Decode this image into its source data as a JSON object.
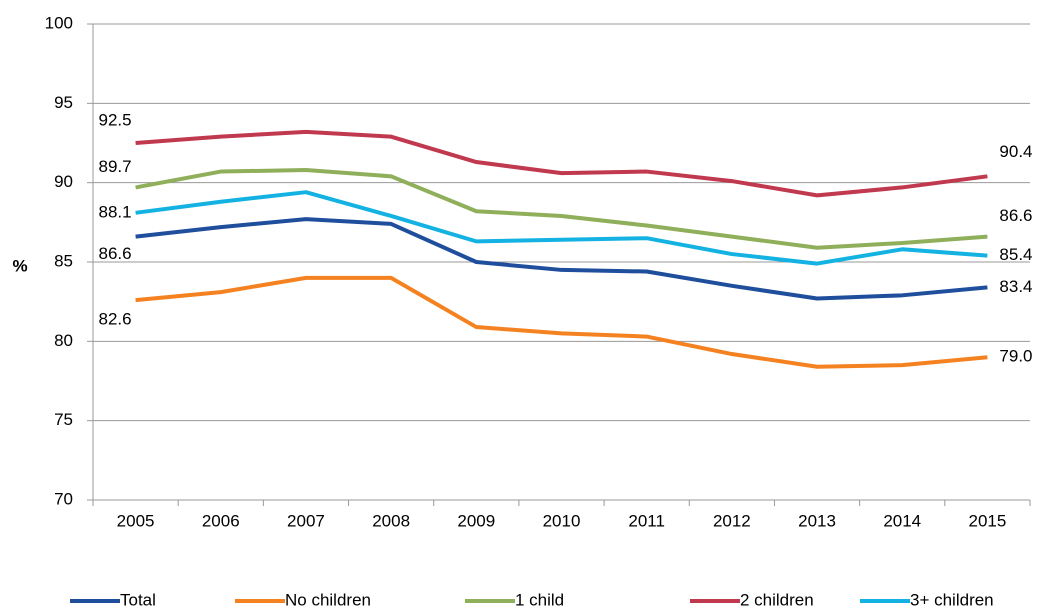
{
  "chart_data": {
    "type": "line",
    "y_label": "%",
    "categories": [
      "2005",
      "2006",
      "2007",
      "2008",
      "2009",
      "2010",
      "2011",
      "2012",
      "2013",
      "2014",
      "2015"
    ],
    "series": [
      {
        "name": "Total",
        "color": "#1f4e9c",
        "values": [
          86.6,
          87.2,
          87.7,
          87.4,
          85.0,
          84.5,
          84.4,
          83.5,
          82.7,
          82.9,
          83.4
        ]
      },
      {
        "name": "No children",
        "color": "#f58220",
        "values": [
          82.6,
          83.1,
          84.0,
          84.0,
          80.9,
          80.5,
          80.3,
          79.2,
          78.4,
          78.5,
          79.0
        ],
        "value_labels": [
          "82.6",
          null,
          null,
          null,
          null,
          null,
          null,
          null,
          null,
          null,
          "79.0"
        ]
      },
      {
        "name": "1 child",
        "color": "#8faf5a",
        "values": [
          89.7,
          90.7,
          90.8,
          90.4,
          88.2,
          87.9,
          87.3,
          86.6,
          85.9,
          86.2,
          86.6
        ]
      },
      {
        "name": "2 children",
        "color": "#c0394f",
        "values": [
          92.5,
          92.9,
          93.2,
          92.9,
          91.3,
          90.6,
          90.7,
          90.1,
          89.2,
          89.7,
          90.4
        ]
      },
      {
        "name": "3+ children",
        "color": "#14b2e2",
        "values": [
          88.1,
          88.8,
          89.4,
          87.9,
          86.3,
          86.4,
          86.5,
          85.5,
          84.9,
          85.8,
          85.4
        ]
      }
    ],
    "labeled_points": [
      0,
      10
    ],
    "ylim": [
      70,
      100
    ],
    "yticks": [
      70,
      75,
      80,
      85,
      90,
      95,
      100
    ],
    "grid": true
  }
}
